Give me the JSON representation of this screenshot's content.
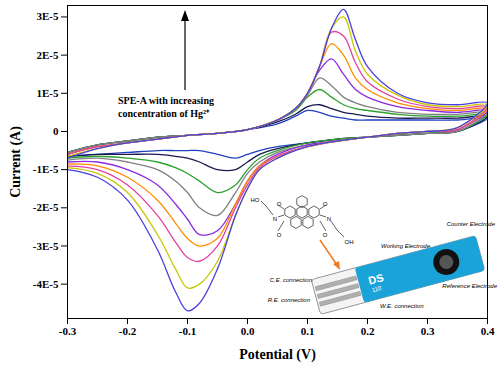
{
  "chart_data": {
    "type": "line",
    "x_label": "Potential (V)",
    "y_label": "Current (A)",
    "xlim": [
      -0.3,
      0.4
    ],
    "xticks": [
      -0.3,
      -0.2,
      -0.1,
      {
        "value": 0,
        "label": "0.0"
      },
      0.1,
      0.2,
      0.3,
      0.4
    ],
    "ylim": [
      -4.9e-05,
      3.3e-05
    ],
    "yticks": [
      {
        "value": -4e-05,
        "label": "-4E-5"
      },
      {
        "value": -3e-05,
        "label": "-3E-5"
      },
      {
        "value": -2e-05,
        "label": "-2E-5"
      },
      {
        "value": -1e-05,
        "label": "-1E-5"
      },
      0,
      {
        "value": 1e-05,
        "label": "1E-5"
      },
      {
        "value": 2e-05,
        "label": "2E-5"
      },
      {
        "value": 3e-05,
        "label": "3E-5"
      }
    ],
    "grid": false,
    "x": [
      -0.3,
      -0.25,
      -0.2,
      -0.15,
      -0.1,
      -0.05,
      0,
      0.05,
      0.08,
      0.1,
      0.12,
      0.14,
      0.16,
      0.18,
      0.2,
      0.25,
      0.3,
      0.35,
      0.4,
      0.35,
      0.3,
      0.25,
      0.2,
      0.15,
      0.1,
      0.05,
      0.02,
      0,
      -0.02,
      -0.05,
      -0.08,
      -0.1,
      -0.12,
      -0.15,
      -0.2,
      -0.25,
      -0.3
    ],
    "series": [
      {
        "color": "#2040c0",
        "values": [
          -5.5e-06,
          -3.5e-06,
          -2.5e-06,
          -1.5e-06,
          -1e-06,
          -5e-07,
          5e-07,
          2e-06,
          4e-06,
          5.5e-06,
          5e-06,
          4e-06,
          3.5e-06,
          3e-06,
          3e-06,
          3e-06,
          3e-06,
          3e-06,
          3.5e-06,
          0,
          -5e-07,
          -1e-06,
          -1.5e-06,
          -2e-06,
          -3e-06,
          -4e-06,
          -5e-06,
          -6e-06,
          -7e-06,
          -6e-06,
          -5e-06,
          -5e-06,
          -5e-06,
          -5e-06,
          -5.5e-06,
          -6e-06,
          -6.5e-06
        ]
      },
      {
        "color": "#1a1a50",
        "values": [
          -5.5e-06,
          -3.5e-06,
          -2.5e-06,
          -1.5e-06,
          -1e-06,
          -5e-07,
          5e-07,
          2.5e-06,
          4.5e-06,
          6.5e-06,
          7e-06,
          6e-06,
          5e-06,
          4.5e-06,
          4e-06,
          3.5e-06,
          3.5e-06,
          3.5e-06,
          4e-06,
          0,
          -5e-07,
          -1e-06,
          -1.5e-06,
          -2e-06,
          -3e-06,
          -4.5e-06,
          -6e-06,
          -8e-06,
          -1e-05,
          -1e-05,
          -8e-06,
          -7e-06,
          -6.5e-06,
          -6e-06,
          -6e-06,
          -6e-06,
          -6.5e-06
        ]
      },
      {
        "color": "#2ca02c",
        "values": [
          -5.5e-06,
          -3.5e-06,
          -2.5e-06,
          -1.5e-06,
          -1e-06,
          -5e-07,
          5e-07,
          3e-06,
          5.5e-06,
          9e-06,
          1.1e-05,
          9e-06,
          7e-06,
          6e-06,
          5.5e-06,
          4.5e-06,
          4e-06,
          4e-06,
          4.5e-06,
          0,
          -5e-07,
          -1e-06,
          -1.5e-06,
          -2e-06,
          -3e-06,
          -5e-06,
          -7e-06,
          -1e-05,
          -1.4e-05,
          -1.6e-05,
          -1.3e-05,
          -1.1e-05,
          -9.5e-06,
          -8e-06,
          -7e-06,
          -6.5e-06,
          -7e-06
        ]
      },
      {
        "color": "#808080",
        "values": [
          -5.5e-06,
          -3.5e-06,
          -2.5e-06,
          -1.5e-06,
          -1e-06,
          -5e-07,
          5e-07,
          3e-06,
          6e-06,
          9.5e-06,
          1.4e-05,
          1.2e-05,
          9e-06,
          7.5e-06,
          6.5e-06,
          5e-06,
          4.5e-06,
          4.5e-06,
          5e-06,
          0,
          -5e-07,
          -1e-06,
          -1.5e-06,
          -2.5e-06,
          -3.5e-06,
          -5.5e-06,
          -8e-06,
          -1.1e-05,
          -1.6e-05,
          -2.2e-05,
          -2e-05,
          -1.6e-05,
          -1.3e-05,
          -1e-05,
          -8e-06,
          -7e-06,
          -7.5e-06
        ]
      },
      {
        "color": "#8a2be2",
        "values": [
          -6e-06,
          -4e-06,
          -3e-06,
          -2e-06,
          -1e-06,
          -5e-07,
          5e-07,
          3e-06,
          6e-06,
          1e-05,
          1.6e-05,
          1.9e-05,
          1.5e-05,
          1.1e-05,
          9e-06,
          6.5e-06,
          5.5e-06,
          5e-06,
          5.5e-06,
          5e-07,
          0,
          -5e-07,
          -1.5e-06,
          -2.5e-06,
          -3.5e-06,
          -6e-06,
          -9e-06,
          -1.3e-05,
          -1.9e-05,
          -2.6e-05,
          -2.7e-05,
          -2.3e-05,
          -1.9e-05,
          -1.4e-05,
          -1e-05,
          -8e-06,
          -8e-06
        ]
      },
      {
        "color": "#ff8c00",
        "values": [
          -6e-06,
          -4e-06,
          -3e-06,
          -2e-06,
          -1e-06,
          -5e-07,
          5e-07,
          3e-06,
          6e-06,
          1e-05,
          1.7e-05,
          2.3e-05,
          2e-05,
          1.4e-05,
          1.1e-05,
          7.5e-06,
          6e-06,
          5.5e-06,
          6e-06,
          5e-07,
          0,
          -5e-07,
          -1.5e-06,
          -2.5e-06,
          -4e-06,
          -6.5e-06,
          -9e-06,
          -1.3e-05,
          -1.9e-05,
          -2.8e-05,
          -3e-05,
          -2.8e-05,
          -2.4e-05,
          -1.8e-05,
          -1.2e-05,
          -9e-06,
          -8.5e-06
        ]
      },
      {
        "color": "#e040a0",
        "values": [
          -6e-06,
          -4e-06,
          -3e-06,
          -2e-06,
          -1e-06,
          -5e-07,
          5e-07,
          3e-06,
          6e-06,
          1e-05,
          1.7e-05,
          2.6e-05,
          2.5e-05,
          1.8e-05,
          1.3e-05,
          8.5e-06,
          6.5e-06,
          6e-06,
          6.5e-06,
          5e-07,
          0,
          -5e-07,
          -1.5e-06,
          -2.5e-06,
          -4e-06,
          -6.5e-06,
          -9.5e-06,
          -1.4e-05,
          -2e-05,
          -3e-05,
          -3.4e-05,
          -3.3e-05,
          -2.9e-05,
          -2.2e-05,
          -1.4e-05,
          -1e-05,
          -9e-06
        ]
      },
      {
        "color": "#c8c800",
        "values": [
          -6.5e-06,
          -4.5e-06,
          -3e-06,
          -2e-06,
          -1e-06,
          -5e-07,
          5e-07,
          3e-06,
          6e-06,
          1e-05,
          1.7e-05,
          2.7e-05,
          3e-05,
          2.1e-05,
          1.5e-05,
          9.5e-06,
          7e-06,
          6.5e-06,
          7e-06,
          1e-06,
          0,
          -5e-07,
          -1.5e-06,
          -2.5e-06,
          -4e-06,
          -7e-06,
          -1e-05,
          -1.5e-05,
          -2.2e-05,
          -3.4e-05,
          -4e-05,
          -4.1e-05,
          -3.6e-05,
          -2.7e-05,
          -1.6e-05,
          -1.1e-05,
          -9.5e-06
        ]
      },
      {
        "color": "#4a40e0",
        "values": [
          -7e-06,
          -4.5e-06,
          -3e-06,
          -2e-06,
          -1e-06,
          -5e-07,
          5e-07,
          3e-06,
          6e-06,
          1e-05,
          1.7e-05,
          2.7e-05,
          3.2e-05,
          2.4e-05,
          1.7e-05,
          1e-05,
          7.5e-06,
          7e-06,
          7.5e-06,
          1e-06,
          0,
          -5e-07,
          -1.5e-06,
          -2.5e-06,
          -4e-06,
          -7e-06,
          -1e-05,
          -1.5e-05,
          -2.2e-05,
          -3.6e-05,
          -4.5e-05,
          -4.7e-05,
          -4.2e-05,
          -3.1e-05,
          -1.8e-05,
          -1.2e-05,
          -1e-05
        ]
      }
    ],
    "annotation": [
      "SPE-A with increasing",
      "concentration of Hg²⁺"
    ],
    "inset": {
      "molecule_atoms": [
        "HO",
        "O",
        "N",
        "O",
        "O",
        "N",
        "O",
        "OH"
      ],
      "electrode_labels": [
        "Working Electrode",
        "Counter Electrode",
        "Reference Electrode",
        "C.E. connection",
        "W.E. connection",
        "R.E. connection"
      ],
      "strip_text": [
        "DS",
        "110"
      ]
    }
  }
}
